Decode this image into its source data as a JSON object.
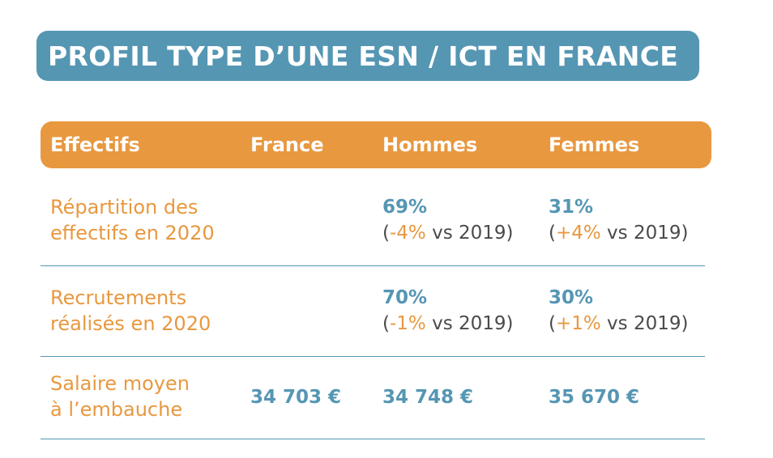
{
  "title": "PROFIL TYPE D’UNE ESN / ICT EN FRANCE",
  "header": {
    "col1": "Effectifs",
    "col2": "France",
    "col3": "Hommes",
    "col4": "Femmes"
  },
  "rows": [
    {
      "label_line1": "Répartition des",
      "label_line2": "effectifs en 2020",
      "hommes": {
        "value": "69%",
        "open": "(",
        "change": "-4%",
        "rest": " vs 2019)"
      },
      "femmes": {
        "value": "31%",
        "open": "(",
        "change": "+4%",
        "rest": " vs 2019)"
      }
    },
    {
      "label_line1": "Recrutements",
      "label_line2": "réalisés en 2020",
      "hommes": {
        "value": "70%",
        "open": "(",
        "change": "-1%",
        "rest": " vs 2019)"
      },
      "femmes": {
        "value": "30%",
        "open": "(",
        "change": "+1%",
        "rest": " vs 2019)"
      }
    },
    {
      "label_line1": "Salaire moyen",
      "label_line2": "à l’embauche",
      "france": "34 703 €",
      "hommes": "34 748 €",
      "femmes": "35 670 €"
    }
  ],
  "colors": {
    "blue": "#5596b3",
    "orange": "#e8983f",
    "text_gray": "#4a4a4a"
  }
}
